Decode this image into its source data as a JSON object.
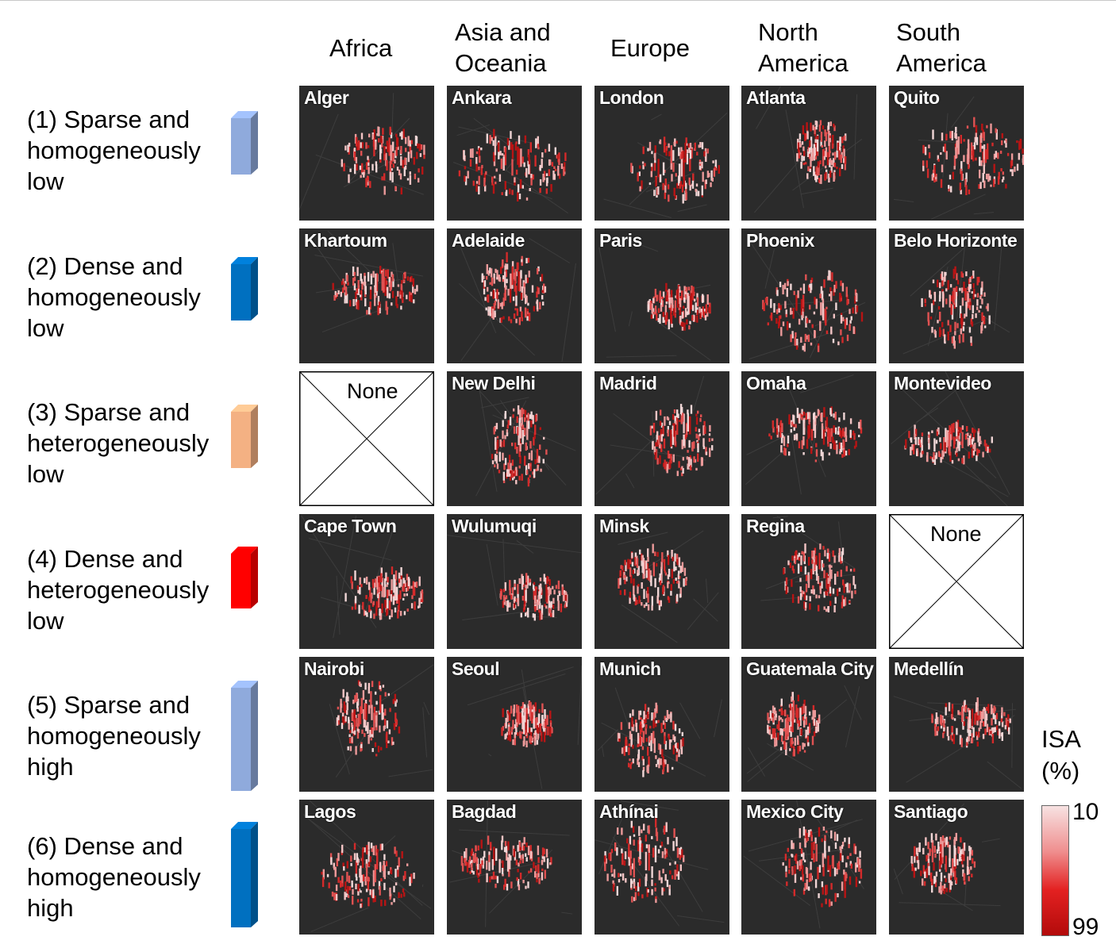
{
  "columns": [
    "Africa",
    "Asia and\nOceania",
    "Europe",
    "North\nAmerica",
    "South\nAmerica"
  ],
  "rows": [
    {
      "label": "(1) Sparse and\nhomogeneously\nlow",
      "bar_color": "#8faadc",
      "bar_height": "short"
    },
    {
      "label": "(2) Dense and\nhomogeneously\nlow",
      "bar_color": "#0070c0",
      "bar_height": "short"
    },
    {
      "label": "(3) Sparse and\nheterogeneously\nlow",
      "bar_color": "#f4b183",
      "bar_height": "short"
    },
    {
      "label": "(4) Dense and\nheterogeneously\nlow",
      "bar_color": "#ff0000",
      "bar_height": "short"
    },
    {
      "label": "(5) Sparse and\nhomogeneously\nhigh",
      "bar_color": "#8faadc",
      "bar_height": "tall"
    },
    {
      "label": "(6) Dense and\nhomogeneously\nhigh",
      "bar_color": "#0070c0",
      "bar_height": "tall"
    }
  ],
  "cities": [
    [
      "Alger",
      "Ankara",
      "London",
      "Atlanta",
      "Quito"
    ],
    [
      "Khartoum",
      "Adelaide",
      "Paris",
      "Phoenix",
      "Belo Horizonte"
    ],
    [
      null,
      "New Delhi",
      "Madrid",
      "Omaha",
      "Montevideo"
    ],
    [
      "Cape Town",
      "Wulumuqi",
      "Minsk",
      "Regina",
      null
    ],
    [
      "Nairobi",
      "Seoul",
      "Munich",
      "Guatemala City",
      "Medellín"
    ],
    [
      "Lagos",
      "Bagdad",
      "Athínai",
      "Mexico City",
      "Santiago"
    ]
  ],
  "none_label": "None",
  "legend": {
    "title": "ISA\n(%)",
    "min": "10",
    "max": "99",
    "colors": [
      "#f7e2e2",
      "#e32121",
      "#b30b0b"
    ]
  }
}
